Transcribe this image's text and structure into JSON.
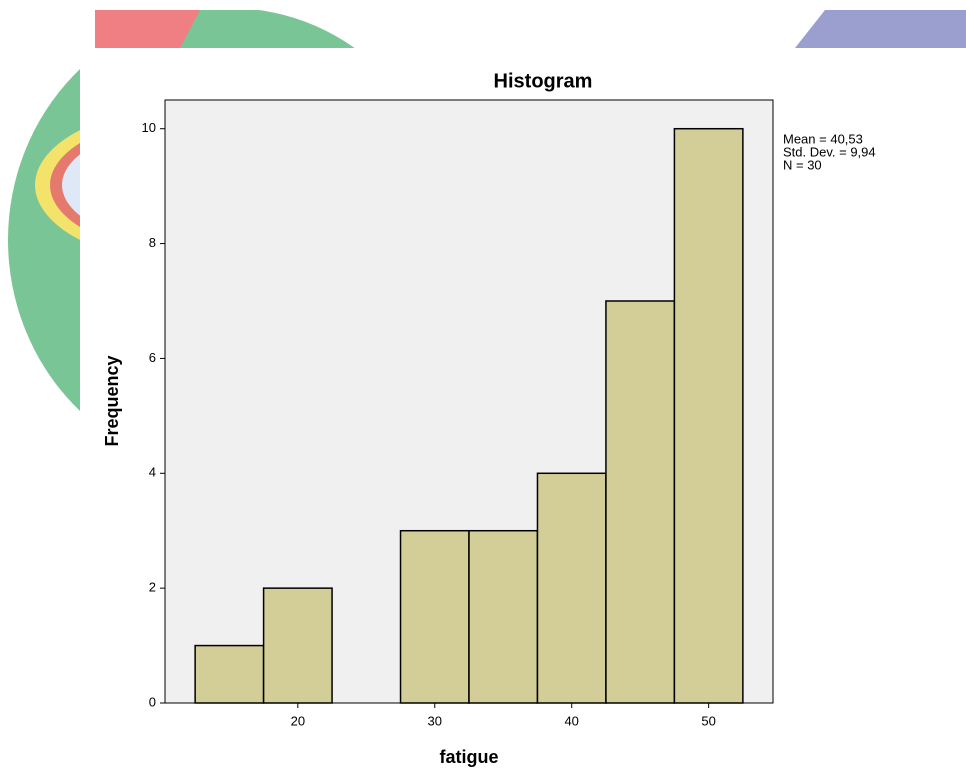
{
  "chart_data": {
    "type": "histogram",
    "title": "Histogram",
    "x_label": "fatigue",
    "y_label": "Frequency",
    "bins": [
      12.5,
      17.5,
      22.5,
      27.5,
      32.5,
      37.5,
      42.5,
      47.5,
      52.5
    ],
    "values": [
      1,
      2,
      0,
      3,
      3,
      4,
      7,
      10
    ],
    "color": "#d3ce98",
    "xlim": [
      10.3,
      54.7
    ],
    "xticks": [
      20,
      30,
      40,
      50
    ],
    "ylim": [
      0,
      10.5
    ],
    "yticks": [
      0,
      2,
      4,
      6,
      8,
      10
    ],
    "annotations": [
      "Mean = 40,53",
      "Std. Dev. = 9,94",
      "N = 30"
    ]
  }
}
